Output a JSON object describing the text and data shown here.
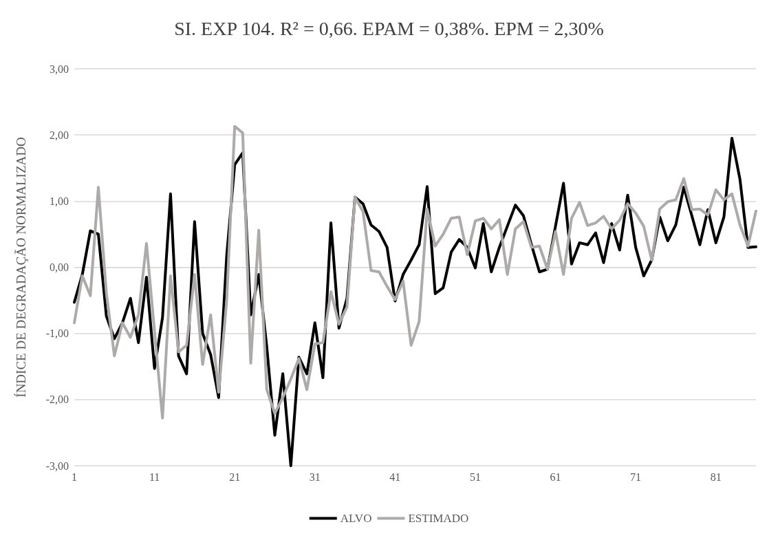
{
  "chart_data": {
    "type": "line",
    "title": "SI. EXP 104. R² = 0,66. EPAM = 0,38%. EPM = 2,30%",
    "ylabel": "ÍNDICE DE DEGRADAÇÃO NORMALIZADO",
    "categories": [
      "1",
      null,
      null,
      null,
      null,
      null,
      null,
      null,
      null,
      null,
      "11",
      null,
      null,
      null,
      null,
      null,
      null,
      null,
      null,
      null,
      "21",
      null,
      null,
      null,
      null,
      null,
      null,
      null,
      null,
      null,
      "31",
      null,
      null,
      null,
      null,
      null,
      null,
      null,
      null,
      null,
      "41",
      null,
      null,
      null,
      null,
      null,
      null,
      null,
      null,
      null,
      "51",
      null,
      null,
      null,
      null,
      null,
      null,
      null,
      null,
      null,
      "61",
      null,
      null,
      null,
      null,
      null,
      null,
      null,
      null,
      null,
      "71",
      null,
      null,
      null,
      null,
      null,
      null,
      null,
      null,
      null,
      "81",
      null,
      null,
      null,
      null,
      null
    ],
    "series": [
      {
        "name": "ALVO",
        "color": "#000000",
        "values": [
          -0.53,
          -0.11,
          0.55,
          0.5,
          -0.74,
          -1.08,
          -0.84,
          -0.47,
          -1.14,
          -0.15,
          -1.53,
          -0.76,
          1.11,
          -1.34,
          -1.61,
          0.69,
          -1.0,
          -1.32,
          -1.97,
          0.17,
          1.55,
          1.73,
          -0.72,
          -0.11,
          -1.2,
          -2.54,
          -1.61,
          -3.0,
          -1.36,
          -1.61,
          -0.84,
          -1.67,
          0.67,
          -0.92,
          -0.47,
          1.06,
          0.96,
          0.64,
          0.54,
          0.3,
          -0.51,
          -0.11,
          0.11,
          0.34,
          1.22,
          -0.4,
          -0.31,
          0.23,
          0.42,
          0.3,
          -0.01,
          0.66,
          -0.07,
          0.3,
          0.62,
          0.94,
          0.78,
          0.34,
          -0.07,
          -0.03,
          0.62,
          1.27,
          0.05,
          0.37,
          0.34,
          0.52,
          0.07,
          0.66,
          0.26,
          1.09,
          0.3,
          -0.13,
          0.11,
          0.76,
          0.4,
          0.64,
          1.21,
          0.78,
          0.34,
          0.87,
          0.37,
          0.76,
          1.95,
          1.33,
          0.3,
          0.31
        ]
      },
      {
        "name": "ESTIMADO",
        "color": "#aeaaaa",
        "values": [
          -0.84,
          -0.13,
          -0.43,
          1.21,
          -0.39,
          -1.34,
          -0.84,
          -1.06,
          -0.72,
          0.36,
          -0.96,
          -2.28,
          -0.13,
          -1.28,
          -1.18,
          -0.11,
          -1.47,
          -0.72,
          -1.89,
          -0.51,
          2.13,
          2.03,
          -1.45,
          0.56,
          -1.85,
          -2.21,
          -1.97,
          -1.69,
          -1.38,
          -1.85,
          -1.16,
          -1.14,
          -0.37,
          -0.86,
          -0.6,
          1.06,
          0.84,
          -0.05,
          -0.07,
          -0.29,
          -0.49,
          -0.21,
          -1.18,
          -0.82,
          0.88,
          0.32,
          0.5,
          0.74,
          0.76,
          0.19,
          0.7,
          0.74,
          0.58,
          0.72,
          -0.11,
          0.58,
          0.69,
          0.3,
          0.32,
          -0.03,
          0.54,
          -0.11,
          0.74,
          0.98,
          0.63,
          0.67,
          0.77,
          0.58,
          0.71,
          0.96,
          0.82,
          0.62,
          0.11,
          0.88,
          0.99,
          1.02,
          1.34,
          0.87,
          0.88,
          0.79,
          1.17,
          1.02,
          1.11,
          0.64,
          0.32,
          0.85
        ]
      }
    ],
    "ylim": [
      -3,
      3
    ],
    "yticks": [
      {
        "value": -3,
        "label": "-3,00"
      },
      {
        "value": -2,
        "label": "-2,00"
      },
      {
        "value": -1,
        "label": "-1,00"
      },
      {
        "value": 0,
        "label": "0,00"
      },
      {
        "value": 1,
        "label": "1,00"
      },
      {
        "value": 2,
        "label": "2,00"
      },
      {
        "value": 3,
        "label": "3,00"
      }
    ],
    "grid": "y",
    "legend": "bottom",
    "marker": "none",
    "line_style": "solid"
  }
}
